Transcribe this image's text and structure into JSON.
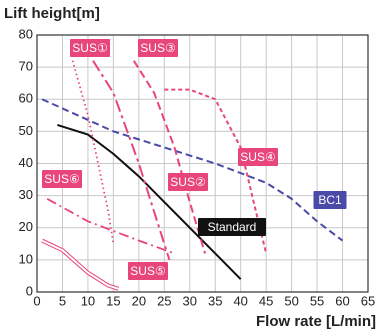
{
  "chart_data": {
    "type": "line",
    "ylabel": "Lift height[m]",
    "xlabel": "Flow rate [L/min]",
    "xlim": [
      0,
      65
    ],
    "xticks": [
      0,
      5,
      10,
      15,
      20,
      25,
      30,
      35,
      40,
      45,
      50,
      55,
      60,
      65
    ],
    "ylim": [
      0,
      80
    ],
    "yticks": [
      0,
      10,
      20,
      30,
      40,
      50,
      60,
      70,
      80
    ],
    "grid": true,
    "series": [
      {
        "name": "Standard",
        "color": "#111111",
        "x": [
          4,
          10,
          15,
          20,
          25,
          30,
          35,
          40
        ],
        "values": [
          52,
          49,
          43,
          36,
          28,
          20,
          12,
          4
        ]
      },
      {
        "name": "BC1",
        "color": "#4a4aa8",
        "x": [
          1,
          8,
          15,
          25,
          35,
          45,
          50,
          55,
          60
        ],
        "values": [
          60,
          55,
          50,
          45,
          40,
          34,
          29,
          22,
          16
        ]
      },
      {
        "name": "SUS①",
        "color": "#e8457a",
        "x": [
          7,
          10,
          12,
          14,
          15
        ],
        "values": [
          72,
          55,
          40,
          25,
          15
        ]
      },
      {
        "name": "SUS②",
        "color": "#e8457a",
        "x": [
          19,
          23,
          27,
          30,
          33
        ],
        "values": [
          72,
          62,
          45,
          28,
          12
        ]
      },
      {
        "name": "SUS③",
        "color": "#e8457a",
        "x": [
          11,
          15,
          20,
          24,
          26
        ],
        "values": [
          72,
          62,
          40,
          20,
          10
        ]
      },
      {
        "name": "SUS④",
        "color": "#e8457a",
        "x": [
          25,
          30,
          35,
          40,
          43,
          45
        ],
        "values": [
          63,
          63,
          60,
          45,
          25,
          12
        ]
      },
      {
        "name": "SUS⑤",
        "color": "#e8457a",
        "x": [
          1,
          5,
          10,
          14,
          16
        ],
        "values": [
          16,
          13,
          6,
          2,
          1
        ]
      },
      {
        "name": "SUS⑥",
        "color": "#e8457a",
        "x": [
          2,
          10,
          20,
          27
        ],
        "values": [
          29,
          22,
          16,
          12
        ]
      }
    ]
  }
}
